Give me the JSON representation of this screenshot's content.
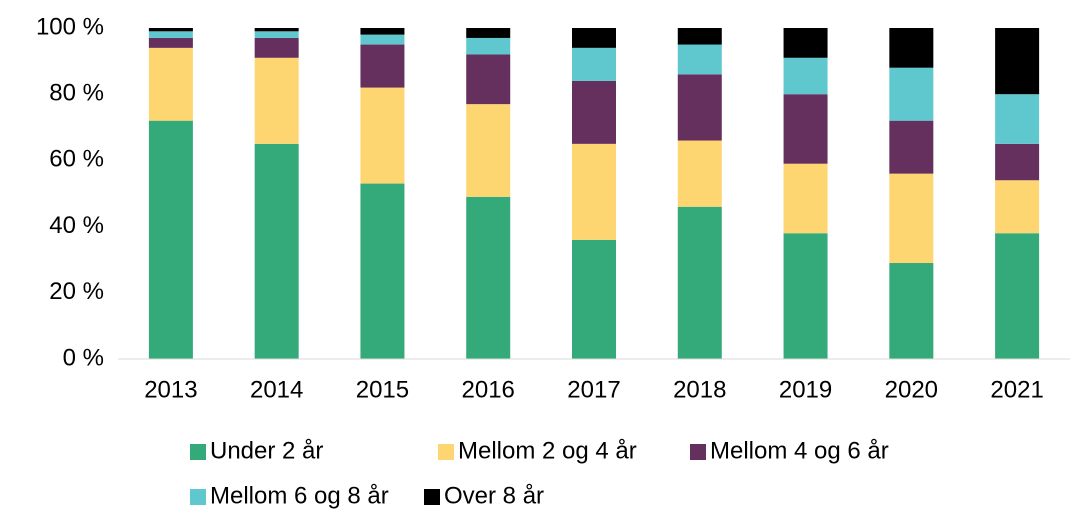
{
  "chart_data": {
    "type": "stacked_bar",
    "categories": [
      "2013",
      "2014",
      "2015",
      "2016",
      "2017",
      "2018",
      "2019",
      "2020",
      "2021"
    ],
    "series": [
      {
        "name": "Under 2 år",
        "color": "#34a97a",
        "values": [
          72,
          65,
          53,
          49,
          36,
          46,
          38,
          29,
          38
        ]
      },
      {
        "name": "Mellom 2 og 4 år",
        "color": "#fdd671",
        "values": [
          22,
          26,
          29,
          28,
          29,
          20,
          21,
          27,
          16
        ]
      },
      {
        "name": "Mellom 4 og 6 år",
        "color": "#66305e",
        "values": [
          3,
          6,
          13,
          15,
          19,
          20,
          21,
          16,
          11
        ]
      },
      {
        "name": "Mellom 6 og 8 år",
        "color": "#5fc8cf",
        "values": [
          2,
          2,
          3,
          5,
          10,
          9,
          11,
          16,
          15
        ]
      },
      {
        "name": "Over 8 år",
        "color": "#000000",
        "values": [
          1,
          1,
          2,
          3,
          6,
          5,
          9,
          12,
          20
        ]
      }
    ],
    "ylim": [
      0,
      100
    ],
    "yticks": [
      {
        "value": 0,
        "label": "0 %"
      },
      {
        "value": 20,
        "label": "20 %"
      },
      {
        "value": 40,
        "label": "40 %"
      },
      {
        "value": 60,
        "label": "60 %"
      },
      {
        "value": 80,
        "label": "80 %"
      },
      {
        "value": 100,
        "label": "100 %"
      }
    ],
    "grid": false
  }
}
